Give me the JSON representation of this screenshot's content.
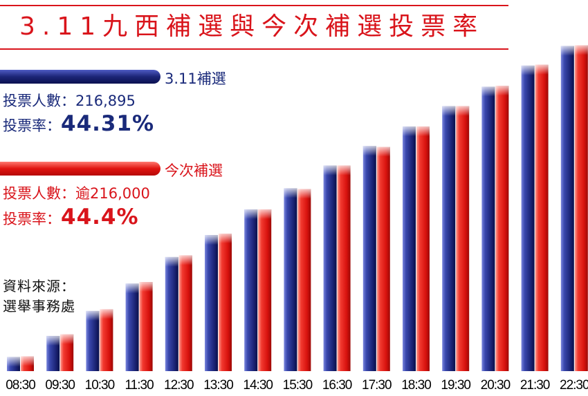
{
  "title": "3.11九西補選與今次補選投票率",
  "legend": {
    "blue": {
      "name": "3.11補選",
      "color": "#1c2577"
    },
    "red": {
      "name": "今次補選",
      "color": "#e01410"
    }
  },
  "stats": {
    "blue": {
      "voters_label": "投票人數：",
      "voters_value": "216,895",
      "rate_label": "投票率：",
      "rate_value": "44.31%"
    },
    "red": {
      "voters_label": "投票人數：",
      "voters_value": "逾216,000",
      "rate_label": "投票率：",
      "rate_value": "44.4%"
    }
  },
  "source": {
    "line1": "資料來源：",
    "line2": "選舉事務處"
  },
  "chart_data": {
    "type": "bar",
    "title": "3.11九西補選與今次補選投票率",
    "categories": [
      "08:30",
      "09:30",
      "10:30",
      "11:30",
      "12:30",
      "13:30",
      "14:30",
      "15:30",
      "16:30",
      "17:30",
      "18:30",
      "19:30",
      "20:30",
      "21:30",
      "22:30"
    ],
    "series": [
      {
        "name": "3.11補選",
        "color": "#1c2577",
        "values": [
          1.8,
          4.5,
          7.7,
          11.2,
          14.6,
          17.4,
          20.7,
          23.4,
          26.3,
          28.8,
          31.3,
          33.9,
          36.4,
          39.1,
          41.6
        ]
      },
      {
        "name": "今次補選",
        "color": "#e01410",
        "values": [
          1.9,
          4.7,
          7.9,
          11.4,
          14.8,
          17.6,
          20.7,
          23.3,
          26.3,
          28.7,
          31.3,
          33.9,
          36.5,
          39.2,
          41.7
        ]
      }
    ],
    "ylim": [
      0,
      44.4
    ],
    "grid": false,
    "legend_position": "top-left"
  }
}
